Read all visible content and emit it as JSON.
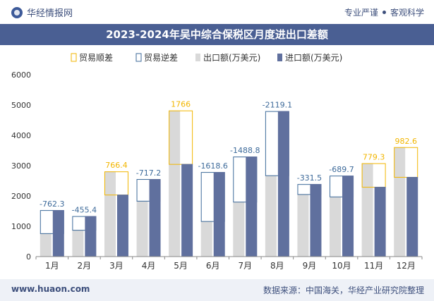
{
  "header": {
    "brand": "华经情报网",
    "tagline_left": "专业严谨",
    "tagline_right": "客观科学"
  },
  "footer": {
    "url": "www.huaon.com",
    "source": "数据来源：中国海关，华经产业研究院整理"
  },
  "colors": {
    "surplus": "#f2b600",
    "deficit": "#3d6a9a",
    "export": "#d9d9d9",
    "import": "#60709e",
    "title_bg": "#4a5f93"
  },
  "chart_data": {
    "type": "bar",
    "title": "2023-2024年吴中综合保税区月度进出口差额",
    "categories": [
      "1月",
      "2月",
      "3月",
      "4月",
      "5月",
      "6月",
      "7月",
      "8月",
      "9月",
      "10月",
      "11月",
      "12月"
    ],
    "series": [
      {
        "name": "出口额(万美元)",
        "values": [
          770,
          880,
          2810,
          1840,
          4820,
          1170,
          1810,
          2680,
          2060,
          1980,
          3080,
          3610
        ]
      },
      {
        "name": "进口额(万美元)",
        "values": [
          1532.3,
          1335.4,
          2043.6,
          2557.2,
          3054,
          2788.6,
          3298.8,
          4799.1,
          2391.5,
          2669.7,
          2300.7,
          2627.4
        ]
      }
    ],
    "balance": {
      "legend_surplus": "贸易顺差",
      "legend_deficit": "贸易逆差",
      "values": [
        -762.3,
        -455.4,
        766.4,
        -717.2,
        1766,
        -1618.6,
        -1488.8,
        -2119.1,
        -331.5,
        -689.7,
        779.3,
        982.6
      ],
      "labels": [
        "-762.3",
        "-455.4",
        "766.4",
        "-717.2",
        "1766",
        "-1618.6",
        "-1488.8",
        "-2119.1",
        "-331.5",
        "-689.7",
        "779.3",
        "982.6"
      ]
    },
    "ylim": [
      0,
      6000
    ],
    "yticks": [
      "0",
      "1000",
      "2000",
      "3000",
      "4000",
      "5000",
      "6000"
    ],
    "legend_position": "top-center",
    "grid": false
  }
}
